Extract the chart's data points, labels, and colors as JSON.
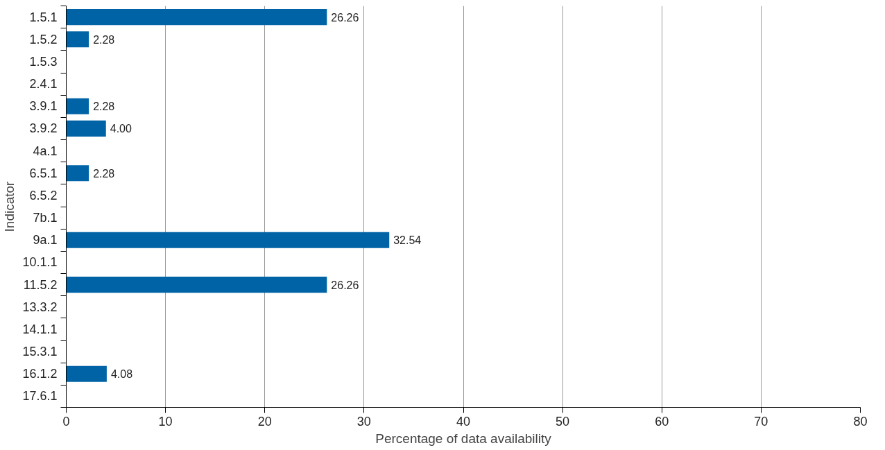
{
  "chart_data": {
    "type": "bar",
    "orientation": "horizontal",
    "xlabel": "Percentage of data availability",
    "ylabel": "Indicator",
    "categories": [
      "1.5.1",
      "1.5.2",
      "1.5.3",
      "2.4.1",
      "3.9.1",
      "3.9.2",
      "4a.1",
      "6.5.1",
      "6.5.2",
      "7b.1",
      "9a.1",
      "10.1.1",
      "11.5.2",
      "13.3.2",
      "14.1.1",
      "15.3.1",
      "16.1.2",
      "17.6.1"
    ],
    "values": [
      26.26,
      2.28,
      null,
      null,
      2.28,
      4.0,
      null,
      2.28,
      null,
      null,
      32.54,
      null,
      26.26,
      null,
      null,
      null,
      4.08,
      null
    ],
    "value_labels": [
      "26.26",
      "2.28",
      null,
      null,
      "2.28",
      "4.00",
      null,
      "2.28",
      null,
      null,
      "32.54",
      null,
      "26.26",
      null,
      null,
      null,
      "4.08",
      null
    ],
    "color": "#0063a6",
    "xlim": [
      0,
      80
    ],
    "xticks": [
      0,
      10,
      20,
      30,
      40,
      50,
      60,
      70,
      80
    ],
    "grid": "x"
  }
}
